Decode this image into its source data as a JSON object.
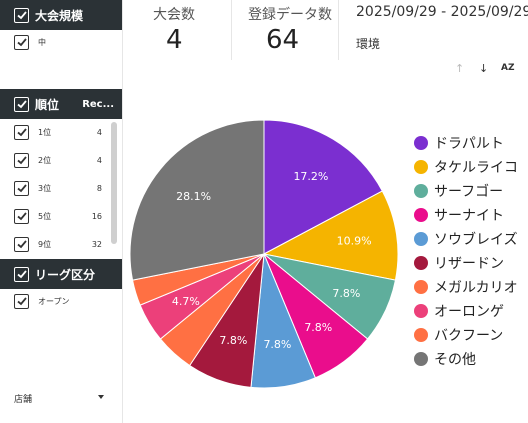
{
  "filters": {
    "scale_title": "大会規模",
    "scale_option": "中",
    "rank_title": "順位",
    "rank_col": "Rec...",
    "ranks": [
      {
        "label": "1位",
        "value": "4"
      },
      {
        "label": "2位",
        "value": "4"
      },
      {
        "label": "3位",
        "value": "8"
      },
      {
        "label": "5位",
        "value": "16"
      },
      {
        "label": "9位",
        "value": "32"
      }
    ],
    "league_title": "リーグ区分",
    "league_option": "オープン",
    "shop_label": "店舗"
  },
  "kpis": [
    {
      "label": "大会数",
      "value": "4"
    },
    {
      "label": "登録データ数",
      "value": "64"
    }
  ],
  "date_range": "2025/09/29 - 2025/09/29",
  "env_label": "環境",
  "chart_data": {
    "type": "pie",
    "slices": [
      {
        "name": "ドラパルト",
        "value": 17.2,
        "color": "#7b2fd0",
        "label": "17.2%"
      },
      {
        "name": "タケルライコ",
        "value": 10.9,
        "color": "#f5b400",
        "label": "10.9%"
      },
      {
        "name": "サーフゴー",
        "value": 7.8,
        "color": "#5fae9c",
        "label": "7.8%"
      },
      {
        "name": "サーナイト",
        "value": 7.8,
        "color": "#ea0d8c",
        "label": "7.8%"
      },
      {
        "name": "ソウブレイズ",
        "value": 7.8,
        "color": "#5b9bd5",
        "label": "7.8%"
      },
      {
        "name": "リザードン",
        "value": 7.8,
        "color": "#a4193d",
        "label": "7.8%"
      },
      {
        "name": "メガルカリオ",
        "value": 4.7,
        "color": "#ff7043",
        "label": ""
      },
      {
        "name": "オーロンゲ",
        "value": 4.7,
        "color": "#ec407a",
        "label": "4.7%"
      },
      {
        "name": "バクフーン",
        "value": 3.1,
        "color": "#ff7043",
        "label": ""
      },
      {
        "name": "その他",
        "value": 28.1,
        "color": "#757575",
        "label": "28.1%"
      }
    ],
    "legend_position": "right"
  }
}
